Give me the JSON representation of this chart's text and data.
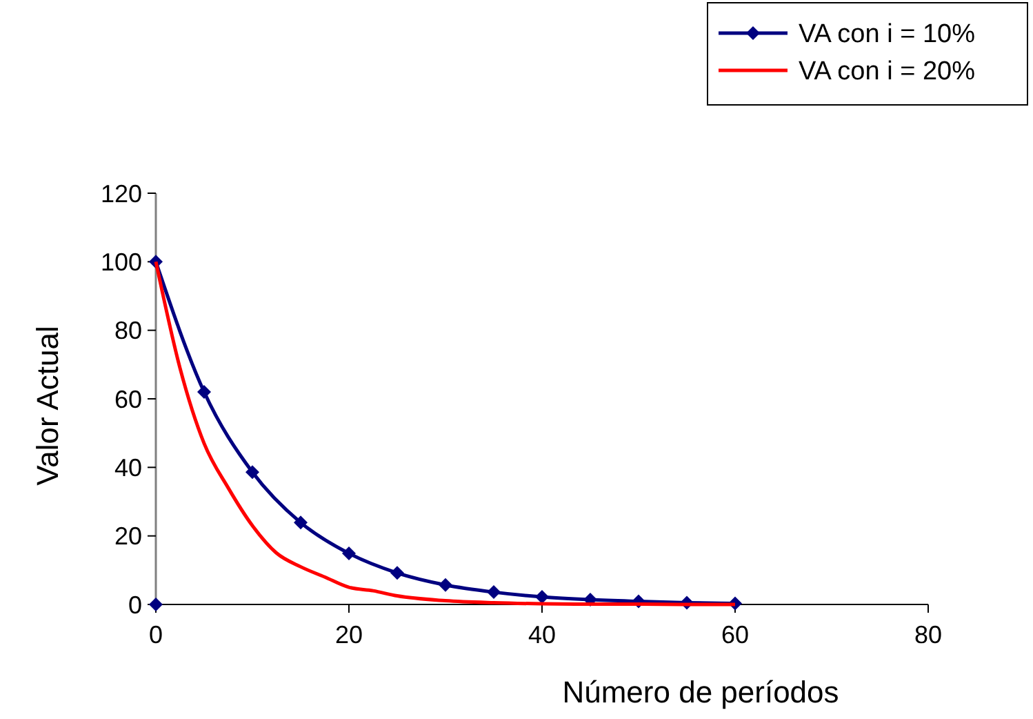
{
  "chart_data": {
    "type": "line",
    "xlabel": "Número de períodos",
    "ylabel": "Valor Actual",
    "xlim": [
      0,
      80
    ],
    "xticks": [
      0,
      20,
      40,
      60,
      80
    ],
    "ylim": [
      0,
      120
    ],
    "yticks": [
      0,
      20,
      40,
      60,
      80,
      100,
      120
    ],
    "grid": false,
    "legend": "top right",
    "series": [
      {
        "name": "VA con i = 10%",
        "color": "#000080",
        "marker": "diamond",
        "x": [
          0,
          5,
          10,
          15,
          20,
          25,
          30,
          35,
          40,
          45,
          50,
          55,
          60
        ],
        "values": [
          100,
          62,
          38.6,
          23.9,
          14.9,
          9.2,
          5.7,
          3.6,
          2.2,
          1.4,
          0.9,
          0.5,
          0.3
        ]
      },
      {
        "name": "VA con i = 20%",
        "color": "#ff0000",
        "marker": "none",
        "x": [
          0,
          2.5,
          5,
          7.5,
          10,
          12.5,
          15,
          17.5,
          20,
          22.5,
          25,
          30,
          35,
          40,
          45,
          50,
          55,
          60
        ],
        "values": [
          100,
          69,
          47,
          34,
          23,
          15,
          11,
          8,
          5,
          4,
          2.5,
          1.1,
          0.5,
          0.2,
          0.1,
          0.1,
          0,
          0
        ]
      },
      {
        "type": "scatter",
        "color": "#000080",
        "marker": "diamond",
        "x": [
          0
        ],
        "values": [
          0
        ]
      }
    ]
  }
}
